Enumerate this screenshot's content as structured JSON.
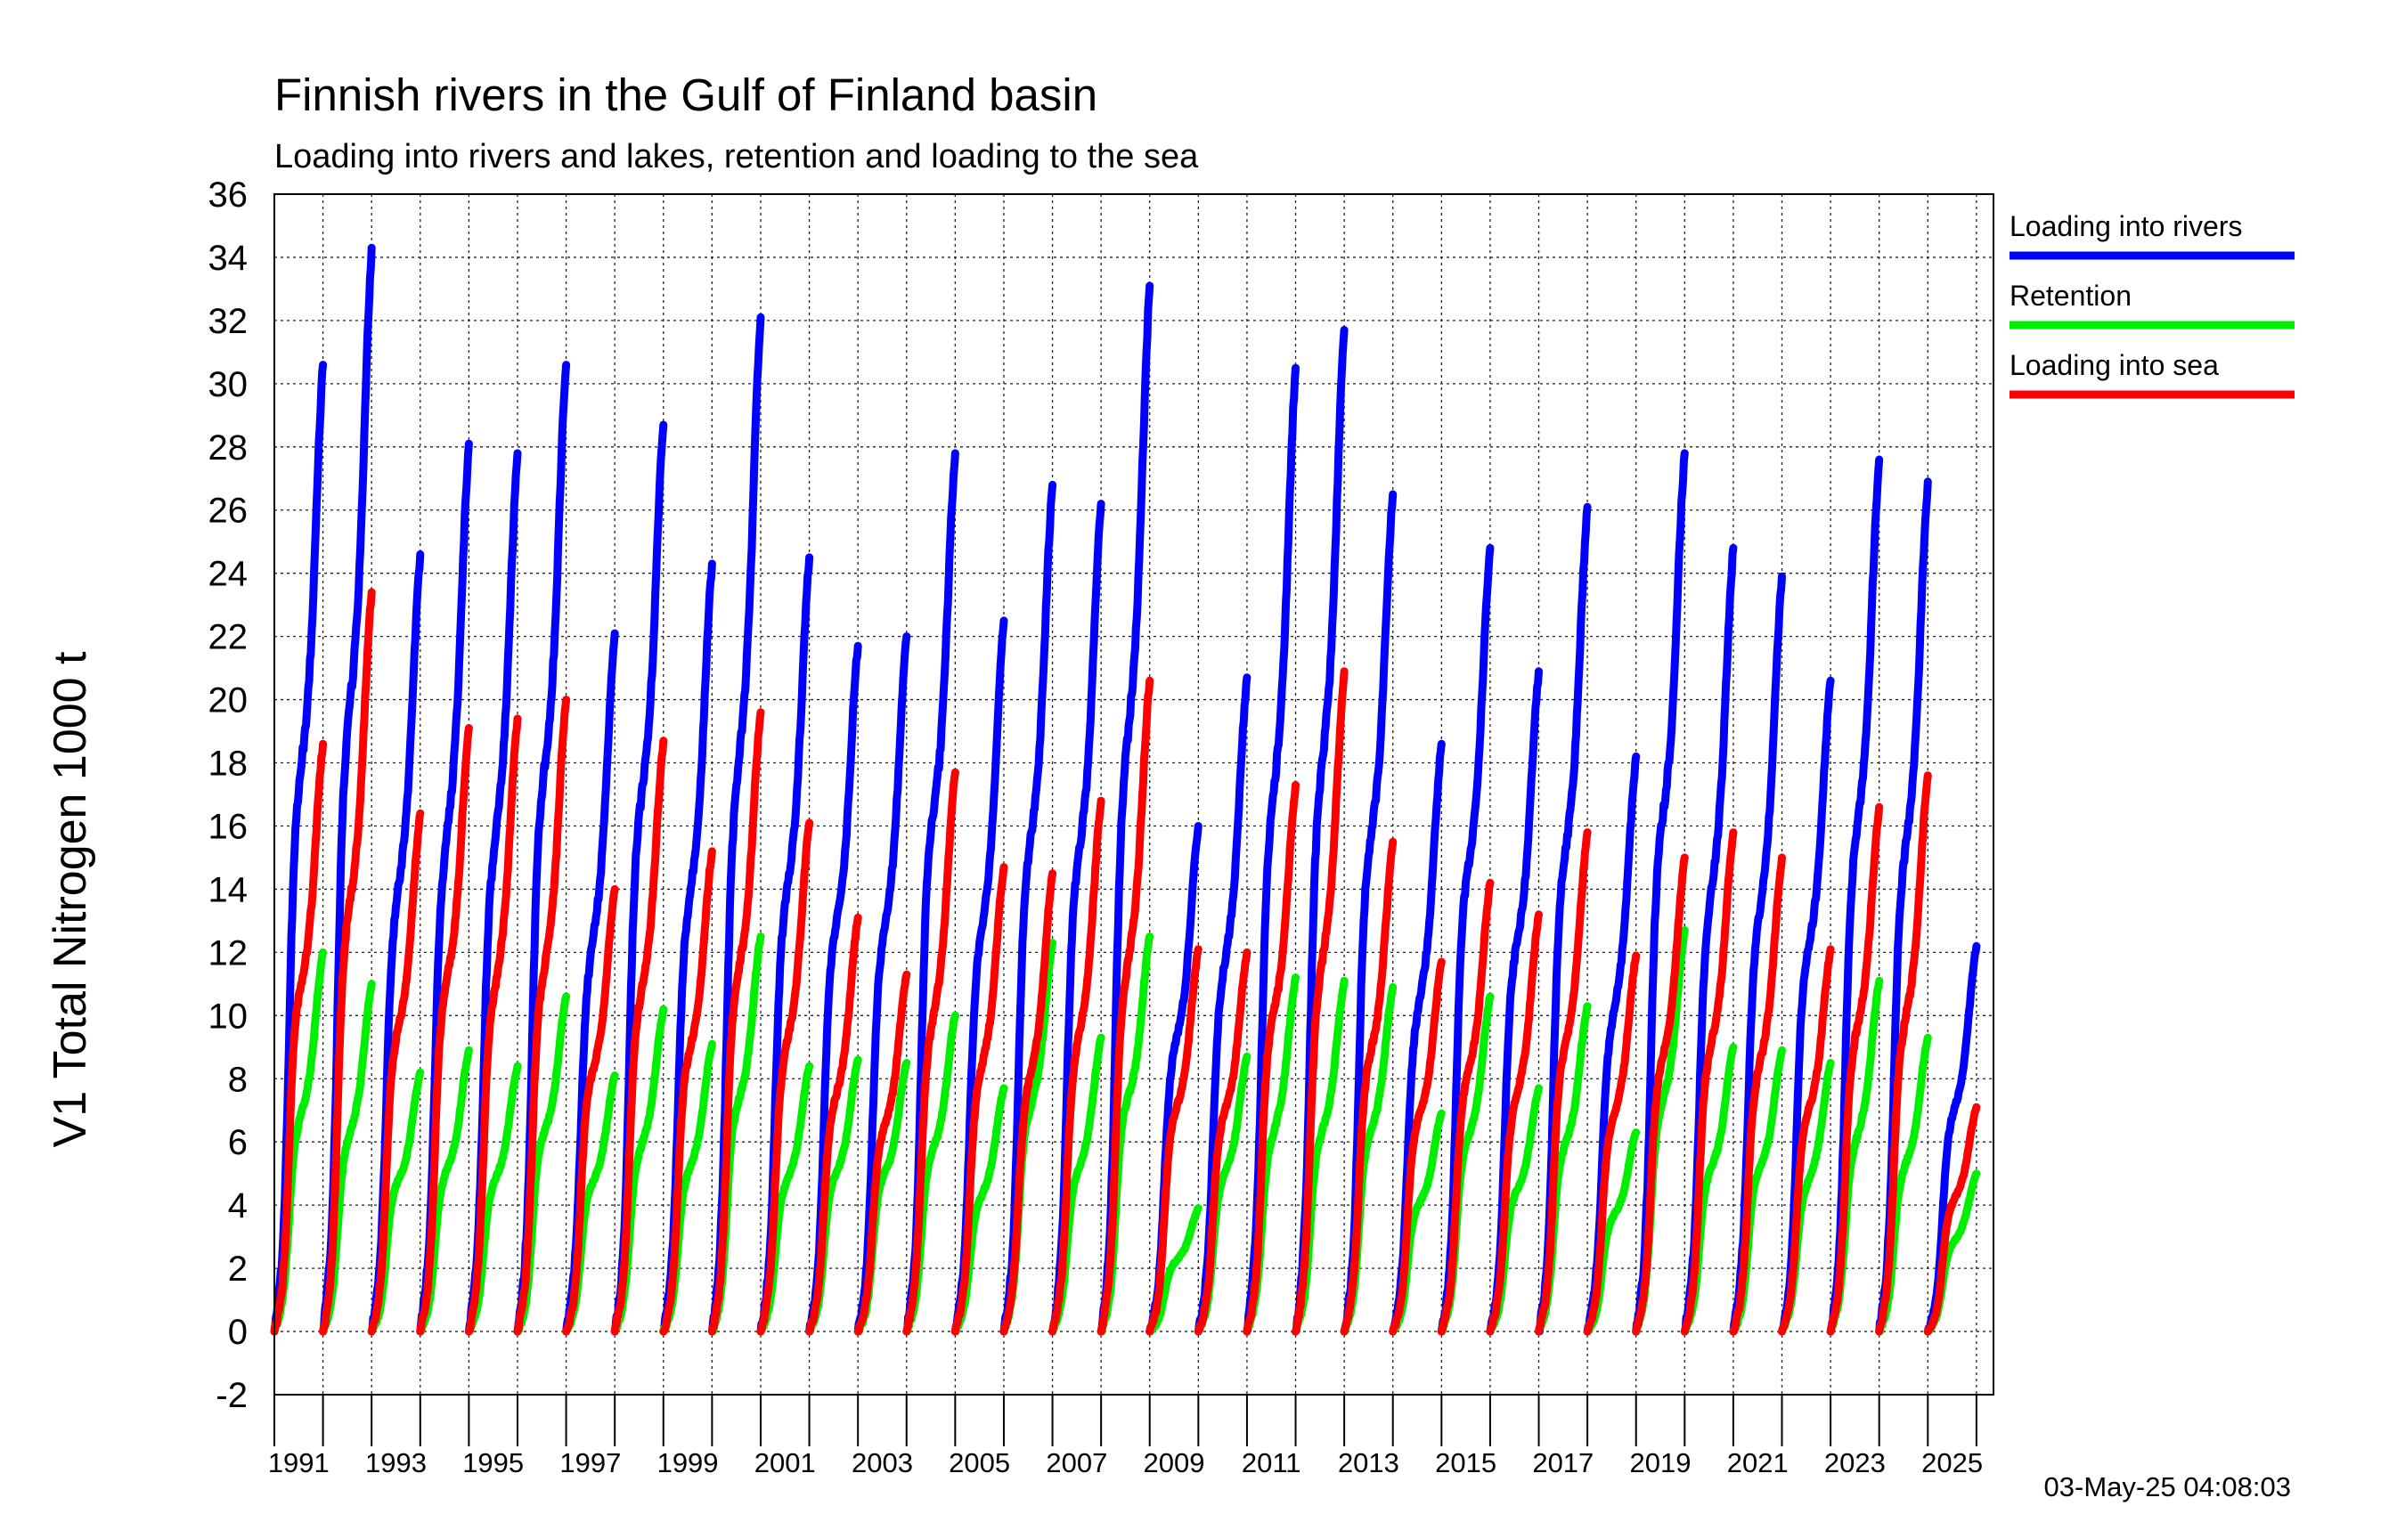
{
  "chart_data": {
    "type": "line",
    "title": "Finnish rivers in the Gulf of Finland basin",
    "subtitle": "Loading into rivers and lakes, retention and loading to the sea",
    "ylabel": "V1 Total Nitrogen 1000 t",
    "ylim": [
      -2,
      36
    ],
    "xlim": [
      1990,
      2025.35
    ],
    "yticks": [
      "-2",
      "0",
      "2",
      "4",
      "6",
      "8",
      "10",
      "12",
      "14",
      "16",
      "18",
      "20",
      "22",
      "24",
      "26",
      "28",
      "30",
      "32",
      "34",
      "36"
    ],
    "xticks": [
      "1991",
      "1993",
      "1995",
      "1997",
      "1999",
      "2001",
      "2003",
      "2005",
      "2007",
      "2009",
      "2011",
      "2013",
      "2015",
      "2017",
      "2019",
      "2021",
      "2023",
      "2025"
    ],
    "grid": true,
    "legend": "right",
    "annual_cumulative": true,
    "years": [
      1990,
      1991,
      1992,
      1993,
      1994,
      1995,
      1996,
      1997,
      1998,
      1999,
      2000,
      2001,
      2002,
      2003,
      2004,
      2005,
      2006,
      2007,
      2008,
      2009,
      2010,
      2011,
      2012,
      2013,
      2014,
      2015,
      2016,
      2017,
      2018,
      2019,
      2020,
      2021,
      2022,
      2023,
      2024,
      2025
    ],
    "series": [
      {
        "name": "Loading into rivers",
        "color": "#0000ff",
        "year_end_totals": [
          30.6,
          34.3,
          24.6,
          28.1,
          27.8,
          30.6,
          22.1,
          28.7,
          24.3,
          32.1,
          24.5,
          21.7,
          22.0,
          27.8,
          22.5,
          26.8,
          26.2,
          33.1,
          16.0,
          20.7,
          30.5,
          31.7,
          26.5,
          18.6,
          24.8,
          20.9,
          26.1,
          18.2,
          27.8,
          24.8,
          23.9,
          20.6,
          27.6,
          26.9,
          12.2
        ]
      },
      {
        "name": "Retention",
        "color": "#00ee00",
        "year_end_totals": [
          12.0,
          11.0,
          8.2,
          8.9,
          8.4,
          10.6,
          8.1,
          10.2,
          9.1,
          12.5,
          8.4,
          8.6,
          8.5,
          10.0,
          7.7,
          12.3,
          9.3,
          12.5,
          3.9,
          8.7,
          11.2,
          11.1,
          10.9,
          6.9,
          10.6,
          7.7,
          10.3,
          6.3,
          12.7,
          9.0,
          8.9,
          8.5,
          11.1,
          9.3,
          5.0
        ]
      },
      {
        "name": "Loading into sea",
        "color": "#ff0000",
        "year_end_totals": [
          18.6,
          23.4,
          16.4,
          19.1,
          19.4,
          20.0,
          14.0,
          18.7,
          15.2,
          19.6,
          16.1,
          13.1,
          11.3,
          17.7,
          14.7,
          14.5,
          16.8,
          20.6,
          12.1,
          12.0,
          17.3,
          20.9,
          15.5,
          11.7,
          14.2,
          13.2,
          15.8,
          11.9,
          15.0,
          15.8,
          15.0,
          12.1,
          16.6,
          17.6,
          7.1
        ]
      }
    ]
  },
  "legend": {
    "items": [
      {
        "label": "Loading into rivers",
        "color": "#0000ff"
      },
      {
        "label": "Retention",
        "color": "#00ee00"
      },
      {
        "label": "Loading into sea",
        "color": "#ff0000"
      }
    ]
  },
  "timestamp": "03-May-25 04:08:03"
}
